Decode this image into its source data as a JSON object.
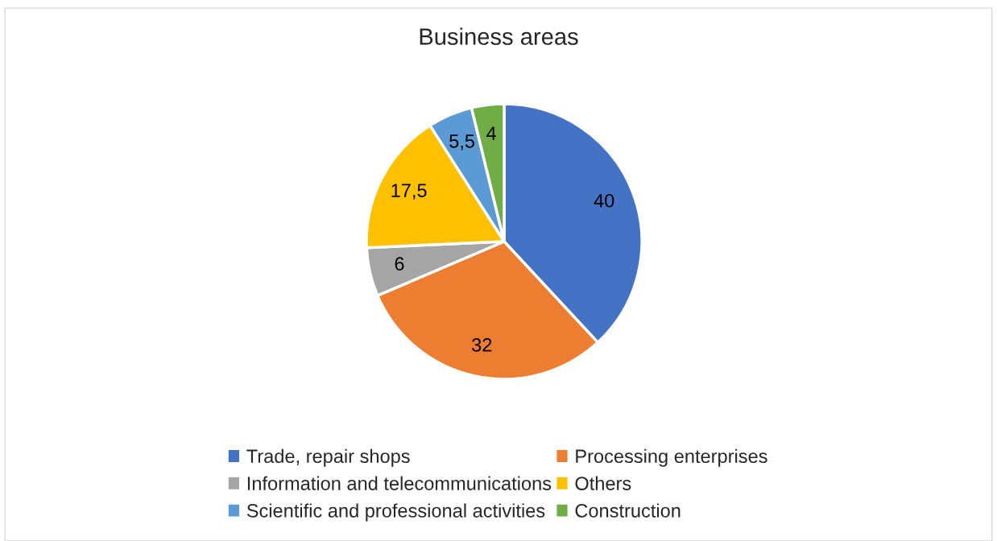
{
  "chart_data": {
    "type": "pie",
    "title": "Business areas",
    "categories": [
      "Trade, repair shops",
      "Processing enterprises",
      "Information and telecommunications",
      "Others",
      "Scientific and professional activities",
      "Construction"
    ],
    "values": [
      40,
      32,
      6,
      17.5,
      5.5,
      4
    ],
    "colors": [
      "#4472c4",
      "#ed7d31",
      "#a5a5a5",
      "#ffc000",
      "#5b9bd5",
      "#70ad47"
    ],
    "value_labels": [
      "40",
      "32",
      "6",
      "17,5",
      "5,5",
      "4"
    ],
    "legend": "bottom"
  }
}
